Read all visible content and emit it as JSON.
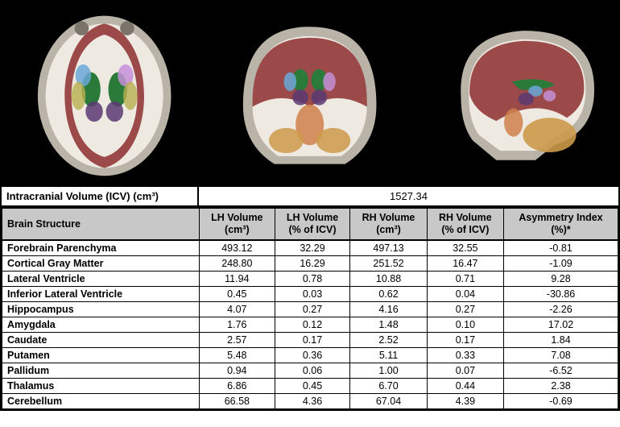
{
  "images": {
    "panel_count": 3,
    "background_color": "#000000",
    "border_color": "#000000"
  },
  "icv": {
    "label": "Intracranial Volume (ICV) (cm³)",
    "value": "1527.34"
  },
  "table": {
    "header_bg": "#c8c8c8",
    "border_color": "#000000",
    "font_family": "Arial",
    "header_fontsize": 12.5,
    "body_fontsize": 12.5,
    "columns": [
      "Brain Structure",
      "LH Volume (cm³)",
      "LH Volume (% of ICV)",
      "RH Volume (cm³)",
      "RH Volume (% of ICV)",
      "Asymmetry Index (%)*"
    ],
    "rows": [
      {
        "name": "Forebrain Parenchyma",
        "lh_vol": "493.12",
        "lh_pct": "32.29",
        "rh_vol": "497.13",
        "rh_pct": "32.55",
        "asym": "-0.81"
      },
      {
        "name": "Cortical Gray Matter",
        "lh_vol": "248.80",
        "lh_pct": "16.29",
        "rh_vol": "251.52",
        "rh_pct": "16.47",
        "asym": "-1.09"
      },
      {
        "name": "Lateral Ventricle",
        "lh_vol": "11.94",
        "lh_pct": "0.78",
        "rh_vol": "10.88",
        "rh_pct": "0.71",
        "asym": "9.28"
      },
      {
        "name": "Inferior Lateral Ventricle",
        "lh_vol": "0.45",
        "lh_pct": "0.03",
        "rh_vol": "0.62",
        "rh_pct": "0.04",
        "asym": "-30.86"
      },
      {
        "name": "Hippocampus",
        "lh_vol": "4.07",
        "lh_pct": "0.27",
        "rh_vol": "4.16",
        "rh_pct": "0.27",
        "asym": "-2.26"
      },
      {
        "name": "Amygdala",
        "lh_vol": "1.76",
        "lh_pct": "0.12",
        "rh_vol": "1.48",
        "rh_pct": "0.10",
        "asym": "17.02"
      },
      {
        "name": "Caudate",
        "lh_vol": "2.57",
        "lh_pct": "0.17",
        "rh_vol": "2.52",
        "rh_pct": "0.17",
        "asym": "1.84"
      },
      {
        "name": "Putamen",
        "lh_vol": "5.48",
        "lh_pct": "0.36",
        "rh_vol": "5.11",
        "rh_pct": "0.33",
        "asym": "7.08"
      },
      {
        "name": "Pallidum",
        "lh_vol": "0.94",
        "lh_pct": "0.06",
        "rh_vol": "1.00",
        "rh_pct": "0.07",
        "asym": "-6.52"
      },
      {
        "name": "Thalamus",
        "lh_vol": "6.86",
        "lh_pct": "0.45",
        "rh_vol": "6.70",
        "rh_pct": "0.44",
        "asym": "2.38"
      },
      {
        "name": "Cerebellum",
        "lh_vol": "66.58",
        "lh_pct": "4.36",
        "rh_vol": "67.04",
        "rh_pct": "4.39",
        "asym": "-0.69"
      }
    ]
  },
  "brain_colors": {
    "tissue_light": "#eeeae2",
    "tissue_mid": "#b9b3a8",
    "cortex": "#8c2e2e",
    "ventricle": "#2a7a3a",
    "caudate_l": "#6aa8d8",
    "caudate_r": "#c48fd8",
    "putamen": "#b9b050",
    "thalamus": "#5a3a72",
    "cerebellum": "#cc9a4a",
    "brainstem": "#d0804a"
  }
}
